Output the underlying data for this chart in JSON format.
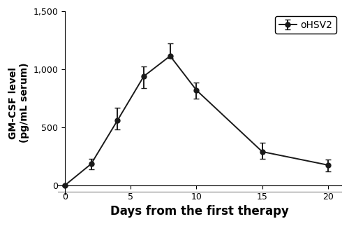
{
  "x": [
    0,
    2,
    4,
    6,
    8,
    10,
    15,
    20
  ],
  "y": [
    0,
    185,
    560,
    940,
    1115,
    820,
    290,
    175
  ],
  "yerr_upper": [
    8,
    45,
    110,
    85,
    110,
    65,
    75,
    48
  ],
  "yerr_lower": [
    8,
    45,
    80,
    105,
    20,
    70,
    60,
    52
  ],
  "xlabel": "Days from the first therapy",
  "ylabel": "GM-CSF level\n(pg/mL serum)",
  "legend_label": "oHSV2",
  "xlim": [
    -0.5,
    21
  ],
  "ylim": [
    -80,
    1500
  ],
  "yticks": [
    0,
    500,
    1000,
    1500
  ],
  "xticks": [
    0,
    5,
    10,
    15,
    20
  ],
  "line_color": "#1a1a1a",
  "marker_size": 5,
  "line_width": 1.4,
  "capsize": 3,
  "background_color": "#ffffff",
  "xlabel_fontsize": 12,
  "ylabel_fontsize": 10,
  "tick_fontsize": 9,
  "legend_fontsize": 10
}
